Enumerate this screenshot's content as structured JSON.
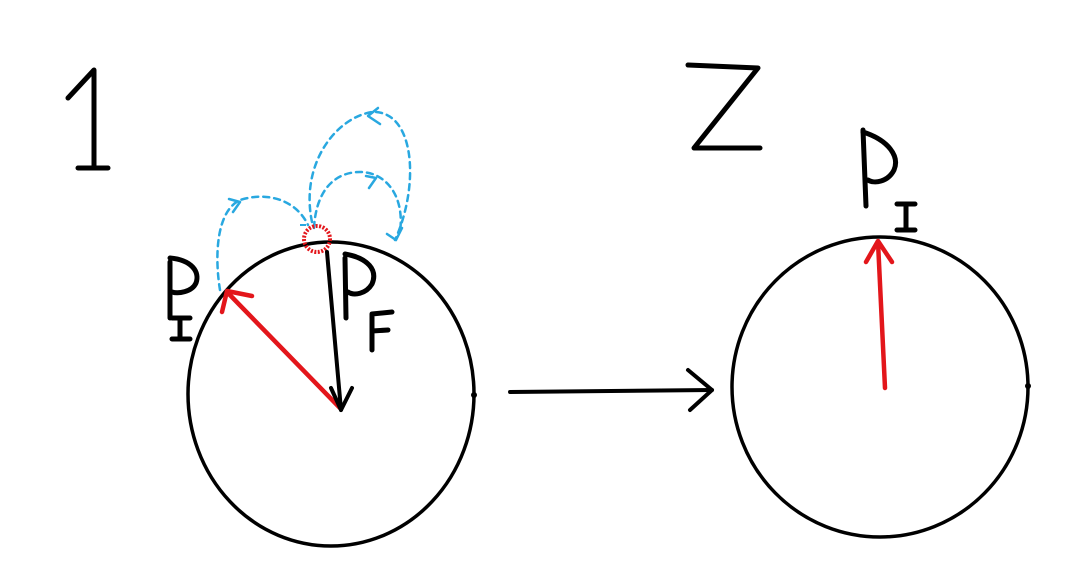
{
  "panels": [
    {
      "number": "1",
      "label_initial_main": "P",
      "label_initial_sub": "I",
      "label_final_main": "P",
      "label_final_sub": "F"
    },
    {
      "number": "2",
      "label_initial_main": "P",
      "label_initial_sub": "I"
    }
  ],
  "colors": {
    "ink": "#000000",
    "initial_vector": "#e3161b",
    "path_arcs": "#29a8e0",
    "marker_circle": "#e3161b"
  },
  "icons": {
    "transition": "right-arrow-icon",
    "target_marker": "circle-marker-icon"
  }
}
